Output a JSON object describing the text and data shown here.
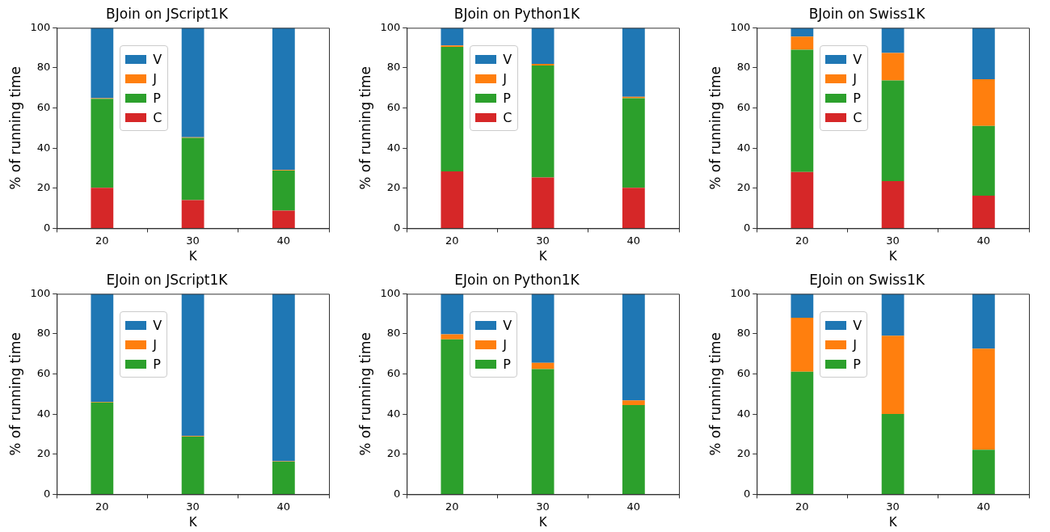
{
  "chart_data": [
    {
      "type": "bar",
      "title": "BJoin on JScript1K",
      "xlabel": "K",
      "ylabel": "% of running time",
      "categories": [
        "20",
        "30",
        "40"
      ],
      "stacked": true,
      "ylim": [
        0,
        100
      ],
      "yticks": [
        0,
        20,
        40,
        60,
        80,
        100
      ],
      "grid": false,
      "legend": "top left",
      "series": [
        {
          "name": "C",
          "color": "#d62728",
          "values": [
            20.2,
            14.1,
            8.8
          ]
        },
        {
          "name": "P",
          "color": "#2ca02c",
          "values": [
            44.4,
            31,
            20
          ]
        },
        {
          "name": "J",
          "color": "#ff7f0e",
          "values": [
            0.3,
            0.3,
            0.3
          ]
        },
        {
          "name": "V",
          "color": "#1f77b4",
          "values": [
            35.1,
            54.6,
            70.9
          ]
        }
      ]
    },
    {
      "type": "bar",
      "title": "BJoin on Python1K",
      "xlabel": "K",
      "ylabel": "% of running time",
      "categories": [
        "20",
        "30",
        "40"
      ],
      "stacked": true,
      "ylim": [
        0,
        100
      ],
      "yticks": [
        0,
        20,
        40,
        60,
        80,
        100
      ],
      "grid": false,
      "legend": "top left",
      "series": [
        {
          "name": "C",
          "color": "#d62728",
          "values": [
            28.4,
            25.4,
            20.2
          ]
        },
        {
          "name": "P",
          "color": "#2ca02c",
          "values": [
            62.1,
            55.8,
            44.7
          ]
        },
        {
          "name": "J",
          "color": "#ff7f0e",
          "values": [
            0.7,
            0.8,
            0.7
          ]
        },
        {
          "name": "V",
          "color": "#1f77b4",
          "values": [
            8.8,
            18,
            34.4
          ]
        }
      ]
    },
    {
      "type": "bar",
      "title": "BJoin on Swiss1K",
      "xlabel": "K",
      "ylabel": "% of running time",
      "categories": [
        "20",
        "30",
        "40"
      ],
      "stacked": true,
      "ylim": [
        0,
        100
      ],
      "yticks": [
        0,
        20,
        40,
        60,
        80,
        100
      ],
      "grid": false,
      "legend": "top left",
      "series": [
        {
          "name": "C",
          "color": "#d62728",
          "values": [
            28.1,
            23.5,
            16.3
          ]
        },
        {
          "name": "P",
          "color": "#2ca02c",
          "values": [
            61,
            50.2,
            34.8
          ]
        },
        {
          "name": "J",
          "color": "#ff7f0e",
          "values": [
            6.5,
            13.8,
            23.3
          ]
        },
        {
          "name": "V",
          "color": "#1f77b4",
          "values": [
            4.4,
            12.5,
            25.6
          ]
        }
      ]
    },
    {
      "type": "bar",
      "title": "EJoin on JScript1K",
      "xlabel": "K",
      "ylabel": "% of running time",
      "categories": [
        "20",
        "30",
        "40"
      ],
      "stacked": true,
      "ylim": [
        0,
        100
      ],
      "yticks": [
        0,
        20,
        40,
        60,
        80,
        100
      ],
      "grid": false,
      "legend": "top left",
      "series": [
        {
          "name": "P",
          "color": "#2ca02c",
          "values": [
            45.8,
            28.8,
            16.3
          ]
        },
        {
          "name": "J",
          "color": "#ff7f0e",
          "values": [
            0.3,
            0.3,
            0.2
          ]
        },
        {
          "name": "V",
          "color": "#1f77b4",
          "values": [
            53.9,
            70.9,
            83.5
          ]
        }
      ]
    },
    {
      "type": "bar",
      "title": "EJoin on Python1K",
      "xlabel": "K",
      "ylabel": "% of running time",
      "categories": [
        "20",
        "30",
        "40"
      ],
      "stacked": true,
      "ylim": [
        0,
        100
      ],
      "yticks": [
        0,
        20,
        40,
        60,
        80,
        100
      ],
      "grid": false,
      "legend": "top left",
      "series": [
        {
          "name": "P",
          "color": "#2ca02c",
          "values": [
            77.3,
            62.5,
            44.5
          ]
        },
        {
          "name": "J",
          "color": "#ff7f0e",
          "values": [
            2.5,
            3.1,
            2.3
          ]
        },
        {
          "name": "V",
          "color": "#1f77b4",
          "values": [
            20.2,
            34.4,
            53.2
          ]
        }
      ]
    },
    {
      "type": "bar",
      "title": "EJoin on Swiss1K",
      "xlabel": "K",
      "ylabel": "% of running time",
      "categories": [
        "20",
        "30",
        "40"
      ],
      "stacked": true,
      "ylim": [
        0,
        100
      ],
      "yticks": [
        0,
        20,
        40,
        60,
        80,
        100
      ],
      "grid": false,
      "legend": "top left",
      "series": [
        {
          "name": "P",
          "color": "#2ca02c",
          "values": [
            61.1,
            40.1,
            22.2
          ]
        },
        {
          "name": "J",
          "color": "#ff7f0e",
          "values": [
            27,
            39,
            50.4
          ]
        },
        {
          "name": "V",
          "color": "#1f77b4",
          "values": [
            11.9,
            20.9,
            27.4
          ]
        }
      ]
    }
  ]
}
